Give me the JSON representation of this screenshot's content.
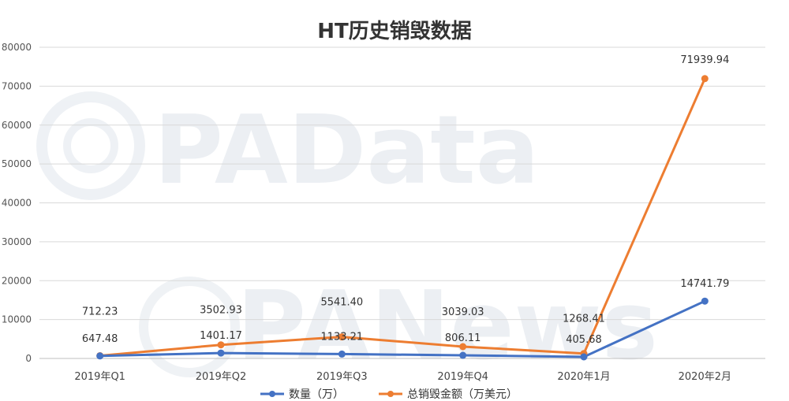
{
  "chart_data": {
    "type": "line",
    "title": "HT历史销毁数据",
    "categories": [
      "2019年Q1",
      "2019年Q2",
      "2019年Q3",
      "2019年Q4",
      "2020年1月",
      "2020年2月"
    ],
    "ylim": [
      0,
      80000
    ],
    "yticks": [
      0,
      10000,
      20000,
      30000,
      40000,
      50000,
      60000,
      70000,
      80000
    ],
    "grid": true,
    "legend_position": "bottom",
    "series": [
      {
        "name": "数量（万）",
        "color": "#4472c4",
        "values": [
          647.48,
          1401.17,
          1133.21,
          806.11,
          405.68,
          14741.79
        ],
        "labels": [
          "647.48",
          "1401.17",
          "1133.21",
          "806.11",
          "405.68",
          "14741.79"
        ]
      },
      {
        "name": "总销毁金额（万美元）",
        "color": "#ed7d31",
        "values": [
          712.23,
          3502.93,
          5541.4,
          3039.03,
          1268.41,
          71939.94
        ],
        "labels": [
          "712.23",
          "3502.93",
          "5541.40",
          "3039.03",
          "1268.41",
          "71939.94"
        ]
      }
    ]
  },
  "watermarks": [
    "PAData",
    "PANews"
  ]
}
